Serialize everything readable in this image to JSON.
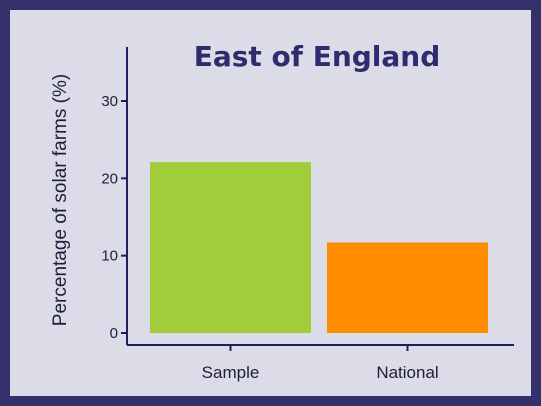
{
  "chart_data": {
    "type": "bar",
    "title": "East of England",
    "ylabel": "Percentage of solar farms (%)",
    "xlabel": "",
    "categories": [
      "Sample",
      "National"
    ],
    "values": [
      22.1,
      11.7
    ],
    "bar_colors": [
      "#a2cd3a",
      "#ff8c00"
    ],
    "yticks": [
      0,
      10,
      20,
      30
    ],
    "ylim": [
      0,
      30
    ],
    "grid": false,
    "legend": "none"
  },
  "colors": {
    "frame": "#33306b",
    "panel": "#dcdce8",
    "axis": "#1e1e5a",
    "title": "#2e2c6e"
  }
}
